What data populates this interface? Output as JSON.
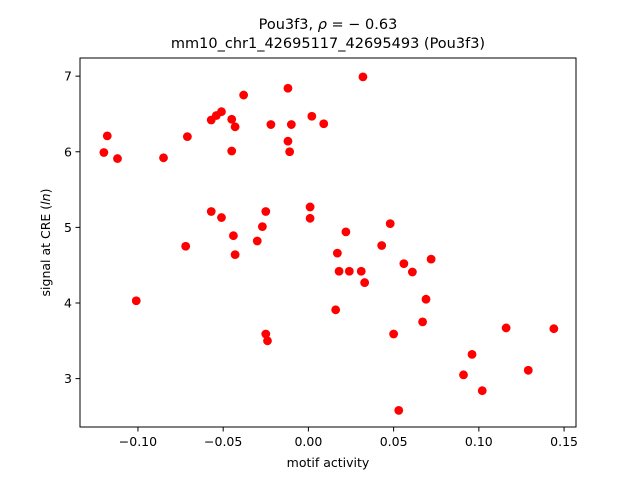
{
  "chart_data": {
    "type": "scatter",
    "title_line1_prefix": "Pou3f3, ",
    "title_rho_symbol": "ρ",
    "title_rho_value": " = − 0.63",
    "title_line2": "mm10_chr1_42695117_42695493 (Pou3f3)",
    "xlabel": "motif activity",
    "ylabel_prefix": "signal at CRE (",
    "ylabel_symbol": "ln",
    "ylabel_suffix": ")",
    "xlim": [
      -0.134,
      0.157
    ],
    "ylim": [
      2.36,
      7.24
    ],
    "xticks": [
      -0.1,
      -0.05,
      0.0,
      0.05,
      0.1,
      0.15
    ],
    "xtick_labels": [
      "−0.10",
      "−0.05",
      "0.00",
      "0.05",
      "0.10",
      "0.15"
    ],
    "yticks": [
      3,
      4,
      5,
      6,
      7
    ],
    "ytick_labels": [
      "3",
      "4",
      "5",
      "6",
      "7"
    ],
    "grid": false,
    "marker_color": "#ff0000",
    "points": [
      {
        "x": -0.12,
        "y": 5.99
      },
      {
        "x": -0.118,
        "y": 6.21
      },
      {
        "x": -0.112,
        "y": 5.91
      },
      {
        "x": -0.101,
        "y": 4.03
      },
      {
        "x": -0.085,
        "y": 5.92
      },
      {
        "x": -0.072,
        "y": 4.75
      },
      {
        "x": -0.071,
        "y": 6.2
      },
      {
        "x": -0.057,
        "y": 6.42
      },
      {
        "x": -0.057,
        "y": 5.21
      },
      {
        "x": -0.054,
        "y": 6.48
      },
      {
        "x": -0.051,
        "y": 6.53
      },
      {
        "x": -0.051,
        "y": 5.13
      },
      {
        "x": -0.045,
        "y": 6.43
      },
      {
        "x": -0.045,
        "y": 6.01
      },
      {
        "x": -0.044,
        "y": 4.89
      },
      {
        "x": -0.043,
        "y": 6.33
      },
      {
        "x": -0.043,
        "y": 4.64
      },
      {
        "x": -0.038,
        "y": 6.75
      },
      {
        "x": -0.03,
        "y": 4.82
      },
      {
        "x": -0.027,
        "y": 5.01
      },
      {
        "x": -0.025,
        "y": 5.21
      },
      {
        "x": -0.025,
        "y": 3.59
      },
      {
        "x": -0.024,
        "y": 3.5
      },
      {
        "x": -0.022,
        "y": 6.36
      },
      {
        "x": -0.012,
        "y": 6.84
      },
      {
        "x": -0.012,
        "y": 6.14
      },
      {
        "x": -0.011,
        "y": 6.0
      },
      {
        "x": -0.01,
        "y": 6.36
      },
      {
        "x": 0.001,
        "y": 5.12
      },
      {
        "x": 0.001,
        "y": 5.27
      },
      {
        "x": 0.002,
        "y": 6.47
      },
      {
        "x": 0.009,
        "y": 6.37
      },
      {
        "x": 0.016,
        "y": 3.91
      },
      {
        "x": 0.017,
        "y": 4.66
      },
      {
        "x": 0.018,
        "y": 4.42
      },
      {
        "x": 0.022,
        "y": 4.94
      },
      {
        "x": 0.024,
        "y": 4.42
      },
      {
        "x": 0.031,
        "y": 4.42
      },
      {
        "x": 0.032,
        "y": 6.99
      },
      {
        "x": 0.033,
        "y": 4.27
      },
      {
        "x": 0.043,
        "y": 4.76
      },
      {
        "x": 0.048,
        "y": 5.05
      },
      {
        "x": 0.05,
        "y": 3.59
      },
      {
        "x": 0.053,
        "y": 2.58
      },
      {
        "x": 0.056,
        "y": 4.52
      },
      {
        "x": 0.061,
        "y": 4.41
      },
      {
        "x": 0.067,
        "y": 3.75
      },
      {
        "x": 0.069,
        "y": 4.05
      },
      {
        "x": 0.072,
        "y": 4.58
      },
      {
        "x": 0.091,
        "y": 3.05
      },
      {
        "x": 0.096,
        "y": 3.32
      },
      {
        "x": 0.102,
        "y": 2.84
      },
      {
        "x": 0.116,
        "y": 3.67
      },
      {
        "x": 0.129,
        "y": 3.11
      },
      {
        "x": 0.144,
        "y": 3.66
      }
    ]
  }
}
